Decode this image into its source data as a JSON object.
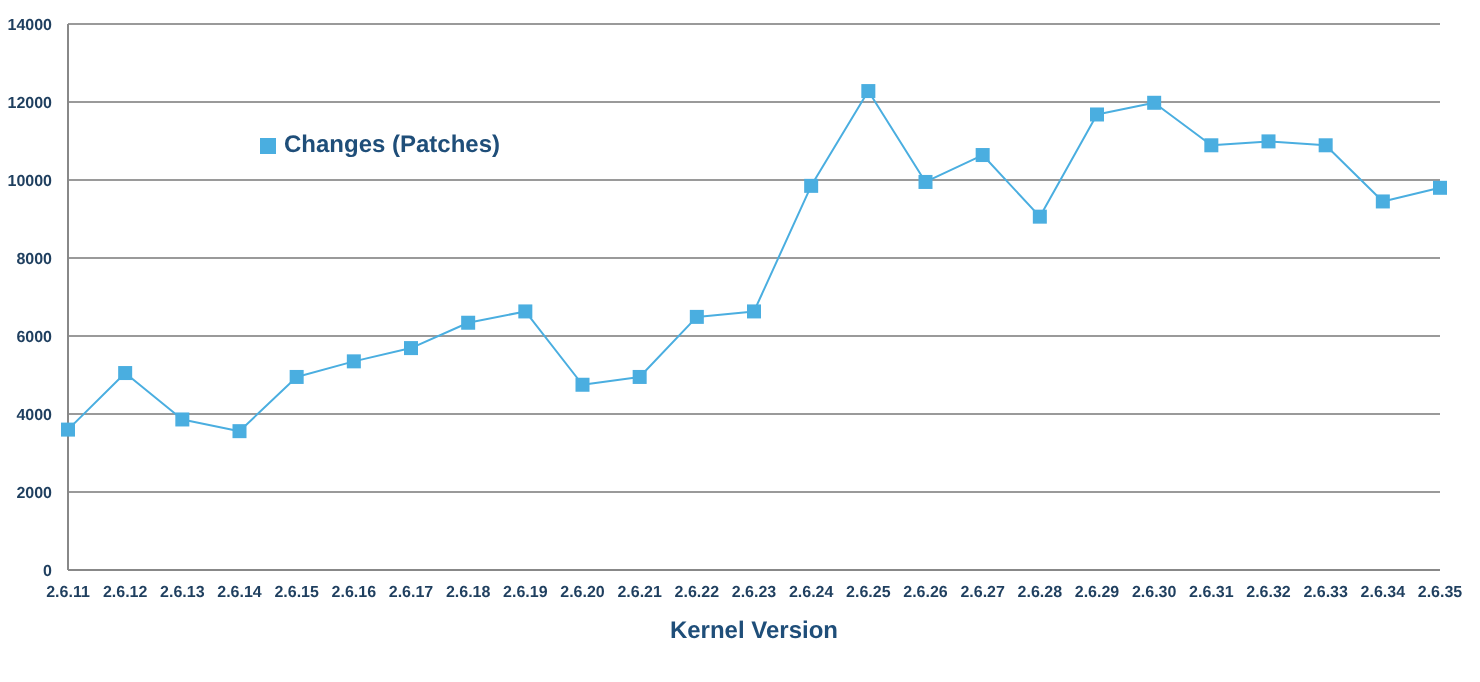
{
  "chart_data": {
    "type": "line",
    "xlabel": "Kernel Version",
    "categories": [
      "2.6.11",
      "2.6.12",
      "2.6.13",
      "2.6.14",
      "2.6.15",
      "2.6.16",
      "2.6.17",
      "2.6.18",
      "2.6.19",
      "2.6.20",
      "2.6.21",
      "2.6.22",
      "2.6.23",
      "2.6.24",
      "2.6.25",
      "2.6.26",
      "2.6.27",
      "2.6.28",
      "2.6.29",
      "2.6.30",
      "2.6.31",
      "2.6.32",
      "2.6.33",
      "2.6.34",
      "2.6.35"
    ],
    "series": [
      {
        "name": "Changes (Patches)",
        "color": "#4aaee0",
        "values": [
          3600,
          5050,
          3860,
          3560,
          4950,
          5350,
          5690,
          6340,
          6630,
          4750,
          4950,
          6490,
          6630,
          9850,
          12280,
          9950,
          10640,
          9060,
          11680,
          11980,
          10890,
          10990,
          10890,
          9450,
          9800
        ]
      }
    ],
    "ylim": [
      0,
      14000
    ],
    "yticks": [
      0,
      2000,
      4000,
      6000,
      8000,
      10000,
      12000,
      14000
    ],
    "grid": "y",
    "legend": "top left",
    "marker": "square",
    "line_style": "solid"
  }
}
